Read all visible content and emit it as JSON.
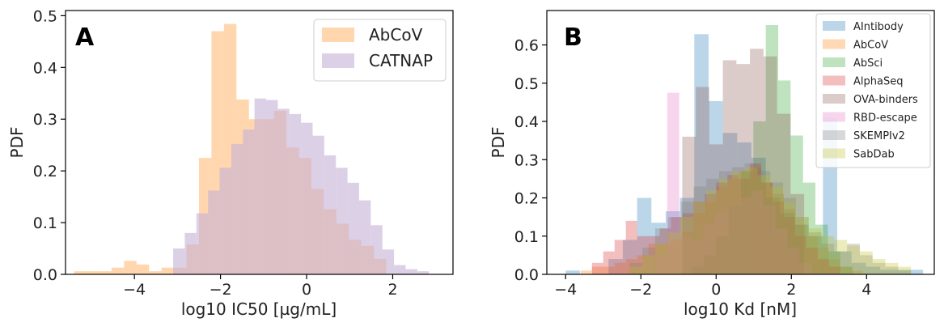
{
  "chart_data": [
    {
      "type": "histogram",
      "panel_label": "A",
      "xlabel": "log10 IC50 [µg/mL]",
      "ylabel": "PDF",
      "xlim": [
        -5.6,
        3.4
      ],
      "ylim": [
        0,
        0.51
      ],
      "xticks": [
        -4,
        -2,
        0,
        2
      ],
      "xtick_labels": [
        "−4",
        "−2",
        "0",
        "2"
      ],
      "yticks": [
        0.0,
        0.1,
        0.2,
        0.3,
        0.4,
        0.5
      ],
      "ytick_labels": [
        "0.0",
        "0.1",
        "0.2",
        "0.3",
        "0.4",
        "0.5"
      ],
      "legend_position": "top-right",
      "series": [
        {
          "name": "AbCoV",
          "color": "#ffbb78",
          "opacity": 0.6,
          "bin_width": 0.29,
          "bins": [
            {
              "x0": -5.4,
              "h": 0.006
            },
            {
              "x0": -5.11,
              "h": 0.006
            },
            {
              "x0": -4.82,
              "h": 0.006
            },
            {
              "x0": -4.53,
              "h": 0.013
            },
            {
              "x0": -4.24,
              "h": 0.026
            },
            {
              "x0": -3.95,
              "h": 0.019
            },
            {
              "x0": -3.66,
              "h": 0.006
            },
            {
              "x0": -3.37,
              "h": 0.013
            },
            {
              "x0": -3.08,
              "h": 0.013
            },
            {
              "x0": -2.79,
              "h": 0.058
            },
            {
              "x0": -2.5,
              "h": 0.225
            },
            {
              "x0": -2.21,
              "h": 0.47
            },
            {
              "x0": -1.92,
              "h": 0.484
            },
            {
              "x0": -1.63,
              "h": 0.338
            },
            {
              "x0": -1.34,
              "h": 0.3
            },
            {
              "x0": -1.05,
              "h": 0.3
            },
            {
              "x0": -0.76,
              "h": 0.316
            },
            {
              "x0": -0.47,
              "h": 0.245
            },
            {
              "x0": -0.18,
              "h": 0.225
            },
            {
              "x0": 0.11,
              "h": 0.165
            },
            {
              "x0": 0.4,
              "h": 0.126
            },
            {
              "x0": 0.69,
              "h": 0.098
            },
            {
              "x0": 0.98,
              "h": 0.067
            },
            {
              "x0": 1.27,
              "h": 0.055
            },
            {
              "x0": 1.56,
              "h": 0.03
            }
          ]
        },
        {
          "name": "CATNAP",
          "color": "#c5b0d5",
          "opacity": 0.6,
          "bin_width": 0.27,
          "bins": [
            {
              "x0": -3.1,
              "h": 0.05
            },
            {
              "x0": -2.83,
              "h": 0.08
            },
            {
              "x0": -2.56,
              "h": 0.118
            },
            {
              "x0": -2.29,
              "h": 0.162
            },
            {
              "x0": -2.02,
              "h": 0.206
            },
            {
              "x0": -1.75,
              "h": 0.252
            },
            {
              "x0": -1.48,
              "h": 0.28
            },
            {
              "x0": -1.21,
              "h": 0.34
            },
            {
              "x0": -0.94,
              "h": 0.337
            },
            {
              "x0": -0.67,
              "h": 0.32
            },
            {
              "x0": -0.4,
              "h": 0.31
            },
            {
              "x0": -0.13,
              "h": 0.293
            },
            {
              "x0": 0.14,
              "h": 0.268
            },
            {
              "x0": 0.41,
              "h": 0.23
            },
            {
              "x0": 0.68,
              "h": 0.206
            },
            {
              "x0": 0.95,
              "h": 0.177
            },
            {
              "x0": 1.22,
              "h": 0.143
            },
            {
              "x0": 1.49,
              "h": 0.095
            },
            {
              "x0": 1.76,
              "h": 0.048
            },
            {
              "x0": 2.03,
              "h": 0.018
            },
            {
              "x0": 2.3,
              "h": 0.01
            },
            {
              "x0": 2.57,
              "h": 0.006
            }
          ]
        }
      ]
    },
    {
      "type": "histogram",
      "panel_label": "B",
      "xlabel": "log10 Kd [nM]",
      "ylabel": "PDF",
      "xlim": [
        -4.5,
        5.8
      ],
      "ylim": [
        0,
        0.69
      ],
      "xticks": [
        -4,
        -2,
        0,
        2,
        4
      ],
      "xtick_labels": [
        "−4",
        "−2",
        "0",
        "2",
        "4"
      ],
      "yticks": [
        0.0,
        0.1,
        0.2,
        0.3,
        0.4,
        0.5,
        0.6
      ],
      "ytick_labels": [
        "0.0",
        "0.1",
        "0.2",
        "0.3",
        "0.4",
        "0.5",
        "0.6"
      ],
      "legend_position": "top-right",
      "series": [
        {
          "name": "AIntibody",
          "color": "#1f77b4",
          "opacity": 0.3,
          "bin_width": 0.38,
          "bins": [
            {
              "x0": -4.0,
              "h": 0.01
            },
            {
              "x0": -2.86,
              "h": 0.04
            },
            {
              "x0": -2.48,
              "h": 0.09
            },
            {
              "x0": -2.1,
              "h": 0.2
            },
            {
              "x0": -1.72,
              "h": 0.135
            },
            {
              "x0": -1.34,
              "h": 0.165
            },
            {
              "x0": -0.96,
              "h": 0.2
            },
            {
              "x0": -0.58,
              "h": 0.628
            },
            {
              "x0": -0.2,
              "h": 0.453
            },
            {
              "x0": 0.18,
              "h": 0.37
            },
            {
              "x0": 0.56,
              "h": 0.345
            },
            {
              "x0": 0.94,
              "h": 0.305
            },
            {
              "x0": 1.32,
              "h": 0.2
            },
            {
              "x0": 1.7,
              "h": 0.16
            },
            {
              "x0": 2.08,
              "h": 0.13
            },
            {
              "x0": 2.46,
              "h": 0.1
            },
            {
              "x0": 2.84,
              "h": 0.41
            },
            {
              "x0": 3.22,
              "h": 0.06
            },
            {
              "x0": 3.6,
              "h": 0.03
            },
            {
              "x0": 3.98,
              "h": 0.02
            },
            {
              "x0": 4.36,
              "h": 0.012
            },
            {
              "x0": 4.74,
              "h": 0.012
            },
            {
              "x0": 5.12,
              "h": 0.012
            }
          ]
        },
        {
          "name": "AbCoV",
          "color": "#ff7f0e",
          "opacity": 0.3,
          "bin_width": 0.3,
          "bins": [
            {
              "x0": -3.6,
              "h": 0.01
            },
            {
              "x0": -3.3,
              "h": 0.02
            },
            {
              "x0": -3.0,
              "h": 0.02
            },
            {
              "x0": -2.7,
              "h": 0.03
            },
            {
              "x0": -2.4,
              "h": 0.04
            },
            {
              "x0": -2.1,
              "h": 0.05
            },
            {
              "x0": -1.8,
              "h": 0.08
            },
            {
              "x0": -1.5,
              "h": 0.08
            },
            {
              "x0": -1.2,
              "h": 0.09
            },
            {
              "x0": -0.9,
              "h": 0.11
            },
            {
              "x0": -0.6,
              "h": 0.16
            },
            {
              "x0": -0.3,
              "h": 0.19
            },
            {
              "x0": 0.0,
              "h": 0.23
            },
            {
              "x0": 0.3,
              "h": 0.25
            },
            {
              "x0": 0.6,
              "h": 0.27
            },
            {
              "x0": 0.9,
              "h": 0.28
            },
            {
              "x0": 1.2,
              "h": 0.24
            },
            {
              "x0": 1.5,
              "h": 0.21
            },
            {
              "x0": 1.8,
              "h": 0.17
            },
            {
              "x0": 2.1,
              "h": 0.13
            },
            {
              "x0": 2.4,
              "h": 0.1
            },
            {
              "x0": 2.7,
              "h": 0.07
            },
            {
              "x0": 3.0,
              "h": 0.04
            },
            {
              "x0": 3.3,
              "h": 0.02
            },
            {
              "x0": 3.6,
              "h": 0.01
            }
          ]
        },
        {
          "name": "AbSci",
          "color": "#2ca02c",
          "opacity": 0.3,
          "bin_width": 0.33,
          "bins": [
            {
              "x0": -0.66,
              "h": 0.02
            },
            {
              "x0": -0.33,
              "h": 0.05
            },
            {
              "x0": 0.0,
              "h": 0.1
            },
            {
              "x0": 0.33,
              "h": 0.18
            },
            {
              "x0": 0.66,
              "h": 0.27
            },
            {
              "x0": 0.99,
              "h": 0.4
            },
            {
              "x0": 1.32,
              "h": 0.652
            },
            {
              "x0": 1.65,
              "h": 0.507
            },
            {
              "x0": 1.98,
              "h": 0.363
            },
            {
              "x0": 2.31,
              "h": 0.24
            },
            {
              "x0": 2.64,
              "h": 0.13
            },
            {
              "x0": 2.97,
              "h": 0.06
            },
            {
              "x0": 3.3,
              "h": 0.02
            }
          ]
        },
        {
          "name": "AlphaSeq",
          "color": "#d62728",
          "opacity": 0.3,
          "bin_width": 0.3,
          "bins": [
            {
              "x0": -3.3,
              "h": 0.03
            },
            {
              "x0": -3.0,
              "h": 0.06
            },
            {
              "x0": -2.7,
              "h": 0.09
            },
            {
              "x0": -2.4,
              "h": 0.14
            },
            {
              "x0": -2.1,
              "h": 0.1
            },
            {
              "x0": -1.8,
              "h": 0.1
            },
            {
              "x0": -1.5,
              "h": 0.12
            },
            {
              "x0": -1.2,
              "h": 0.15
            },
            {
              "x0": -0.9,
              "h": 0.16
            },
            {
              "x0": -0.6,
              "h": 0.19
            },
            {
              "x0": -0.3,
              "h": 0.21
            },
            {
              "x0": 0.0,
              "h": 0.24
            },
            {
              "x0": 0.3,
              "h": 0.26
            },
            {
              "x0": 0.6,
              "h": 0.25
            },
            {
              "x0": 0.9,
              "h": 0.29
            },
            {
              "x0": 1.2,
              "h": 0.24
            },
            {
              "x0": 1.5,
              "h": 0.19
            },
            {
              "x0": 1.8,
              "h": 0.15
            },
            {
              "x0": 2.1,
              "h": 0.1
            },
            {
              "x0": 2.4,
              "h": 0.07
            },
            {
              "x0": 2.7,
              "h": 0.04
            },
            {
              "x0": 3.0,
              "h": 0.02
            }
          ]
        },
        {
          "name": "OVA-binders",
          "color": "#8c564b",
          "opacity": 0.3,
          "bin_width": 0.36,
          "bins": [
            {
              "x0": -0.9,
              "h": 0.36
            },
            {
              "x0": -0.54,
              "h": 0.49
            },
            {
              "x0": -0.18,
              "h": 0.34
            },
            {
              "x0": 0.18,
              "h": 0.56
            },
            {
              "x0": 0.54,
              "h": 0.55
            },
            {
              "x0": 0.9,
              "h": 0.59
            },
            {
              "x0": 1.26,
              "h": 0.57
            },
            {
              "x0": 1.62,
              "h": 0.42
            },
            {
              "x0": 1.98,
              "h": 0.21
            }
          ]
        },
        {
          "name": "RBD-escape",
          "color": "#e377c2",
          "opacity": 0.3,
          "bin_width": 0.32,
          "bins": [
            {
              "x0": -1.62,
              "h": 0.05
            },
            {
              "x0": -1.3,
              "h": 0.475
            },
            {
              "x0": -0.98,
              "h": 0.1
            },
            {
              "x0": -0.66,
              "h": 0.09
            },
            {
              "x0": -0.34,
              "h": 0.13
            },
            {
              "x0": -0.02,
              "h": 0.16
            },
            {
              "x0": 0.3,
              "h": 0.18
            },
            {
              "x0": 0.62,
              "h": 0.2
            },
            {
              "x0": 0.94,
              "h": 0.22
            },
            {
              "x0": 1.26,
              "h": 0.18
            },
            {
              "x0": 1.58,
              "h": 0.12
            },
            {
              "x0": 1.9,
              "h": 0.07
            },
            {
              "x0": 2.22,
              "h": 0.03
            }
          ]
        },
        {
          "name": "SKEMPIv2",
          "color": "#7f7f7f",
          "opacity": 0.3,
          "bin_width": 0.34,
          "bins": [
            {
              "x0": -2.3,
              "h": 0.03
            },
            {
              "x0": -1.96,
              "h": 0.07
            },
            {
              "x0": -1.62,
              "h": 0.12
            },
            {
              "x0": -1.28,
              "h": 0.15
            },
            {
              "x0": -0.94,
              "h": 0.19
            },
            {
              "x0": -0.6,
              "h": 0.23
            },
            {
              "x0": -0.26,
              "h": 0.25
            },
            {
              "x0": 0.08,
              "h": 0.27
            },
            {
              "x0": 0.42,
              "h": 0.28
            },
            {
              "x0": 0.76,
              "h": 0.29
            },
            {
              "x0": 1.1,
              "h": 0.27
            },
            {
              "x0": 1.44,
              "h": 0.24
            },
            {
              "x0": 1.78,
              "h": 0.2
            },
            {
              "x0": 2.12,
              "h": 0.15
            },
            {
              "x0": 2.46,
              "h": 0.11
            },
            {
              "x0": 2.8,
              "h": 0.08
            },
            {
              "x0": 3.14,
              "h": 0.06
            },
            {
              "x0": 3.48,
              "h": 0.08
            },
            {
              "x0": 3.82,
              "h": 0.05
            },
            {
              "x0": 4.16,
              "h": 0.03
            },
            {
              "x0": 4.5,
              "h": 0.02
            },
            {
              "x0": 4.84,
              "h": 0.01
            }
          ]
        },
        {
          "name": "SabDab",
          "color": "#bcbd22",
          "opacity": 0.3,
          "bin_width": 0.34,
          "bins": [
            {
              "x0": -2.3,
              "h": 0.02
            },
            {
              "x0": -1.96,
              "h": 0.05
            },
            {
              "x0": -1.62,
              "h": 0.08
            },
            {
              "x0": -1.28,
              "h": 0.11
            },
            {
              "x0": -0.94,
              "h": 0.15
            },
            {
              "x0": -0.6,
              "h": 0.19
            },
            {
              "x0": -0.26,
              "h": 0.22
            },
            {
              "x0": 0.08,
              "h": 0.25
            },
            {
              "x0": 0.42,
              "h": 0.27
            },
            {
              "x0": 0.76,
              "h": 0.28
            },
            {
              "x0": 1.1,
              "h": 0.26
            },
            {
              "x0": 1.44,
              "h": 0.23
            },
            {
              "x0": 1.78,
              "h": 0.19
            },
            {
              "x0": 2.12,
              "h": 0.15
            },
            {
              "x0": 2.46,
              "h": 0.12
            },
            {
              "x0": 2.8,
              "h": 0.1
            },
            {
              "x0": 3.14,
              "h": 0.09
            },
            {
              "x0": 3.48,
              "h": 0.075
            },
            {
              "x0": 3.82,
              "h": 0.06
            },
            {
              "x0": 4.16,
              "h": 0.04
            },
            {
              "x0": 4.5,
              "h": 0.03
            },
            {
              "x0": 4.84,
              "h": 0.02
            }
          ]
        }
      ]
    }
  ]
}
